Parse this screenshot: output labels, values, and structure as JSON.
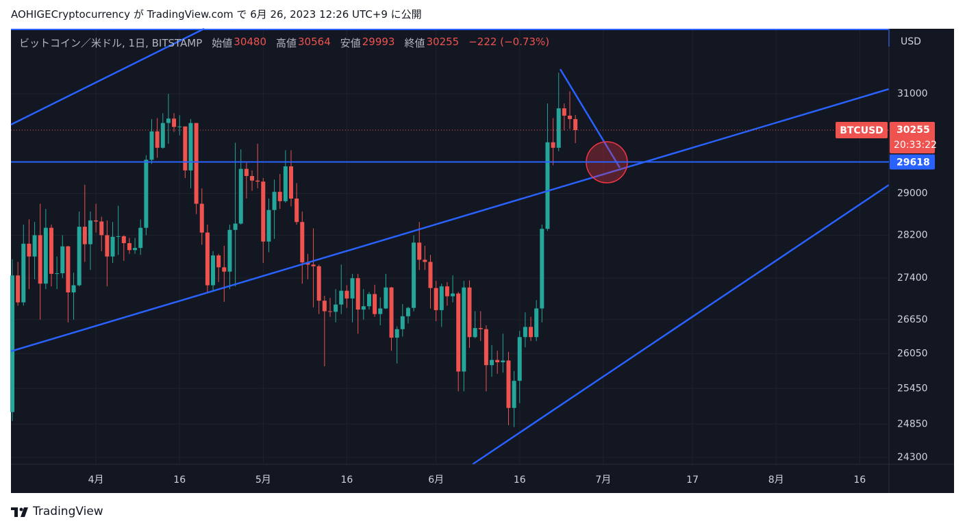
{
  "header": {
    "text": "AOHIGECryptocurrency が TradingView.com で 6月 26, 2023 12:26 UTC+9 に公開"
  },
  "footer": {
    "brand": "TradingView"
  },
  "chart_data": {
    "type": "candlestick",
    "symbol": "ビットコイン／米ドル, 1日, BITSTAMP",
    "legend_labels": {
      "open": "始値",
      "high": "高値",
      "low": "安値",
      "close": "終値"
    },
    "change": "−222 (−0.73%)",
    "currency": "USD",
    "ticker": "BTCUSD",
    "countdown": "20:33:22",
    "up_color": "#26a69a",
    "down_color": "#ef5350",
    "yscale": "log",
    "grid": true,
    "ylim": [
      24190,
      32380
    ],
    "yticks": [
      24300,
      24850,
      25450,
      26050,
      26650,
      27400,
      28200,
      29000,
      31000
    ],
    "xlim": [
      "2023-03-17",
      "2023-08-21"
    ],
    "xticks": [
      {
        "value": "2023-04-01",
        "label": "4月"
      },
      {
        "value": "2023-04-16",
        "label": "16"
      },
      {
        "value": "2023-05-01",
        "label": "5月"
      },
      {
        "value": "2023-05-16",
        "label": "16"
      },
      {
        "value": "2023-06-01",
        "label": "6月"
      },
      {
        "value": "2023-06-16",
        "label": "16"
      },
      {
        "value": "2023-07-01",
        "label": "7月"
      },
      {
        "value": "2023-07-17",
        "label": "17"
      },
      {
        "value": "2023-08-01",
        "label": "8月"
      },
      {
        "value": "2023-08-16",
        "label": "16"
      }
    ],
    "horizontal_line": {
      "value": 29618,
      "color": "#2962ff"
    },
    "x": [
      "2023-03-17",
      "2023-03-18",
      "2023-03-19",
      "2023-03-20",
      "2023-03-21",
      "2023-03-22",
      "2023-03-23",
      "2023-03-24",
      "2023-03-25",
      "2023-03-26",
      "2023-03-27",
      "2023-03-28",
      "2023-03-29",
      "2023-03-30",
      "2023-03-31",
      "2023-04-01",
      "2023-04-02",
      "2023-04-03",
      "2023-04-04",
      "2023-04-05",
      "2023-04-06",
      "2023-04-07",
      "2023-04-08",
      "2023-04-09",
      "2023-04-10",
      "2023-04-11",
      "2023-04-12",
      "2023-04-13",
      "2023-04-14",
      "2023-04-15",
      "2023-04-16",
      "2023-04-17",
      "2023-04-18",
      "2023-04-19",
      "2023-04-20",
      "2023-04-21",
      "2023-04-22",
      "2023-04-23",
      "2023-04-24",
      "2023-04-25",
      "2023-04-26",
      "2023-04-27",
      "2023-04-28",
      "2023-04-29",
      "2023-04-30",
      "2023-05-01",
      "2023-05-02",
      "2023-05-03",
      "2023-05-04",
      "2023-05-05",
      "2023-05-06",
      "2023-05-07",
      "2023-05-08",
      "2023-05-09",
      "2023-05-10",
      "2023-05-11",
      "2023-05-12",
      "2023-05-13",
      "2023-05-14",
      "2023-05-15",
      "2023-05-16",
      "2023-05-17",
      "2023-05-18",
      "2023-05-19",
      "2023-05-20",
      "2023-05-21",
      "2023-05-22",
      "2023-05-23",
      "2023-05-24",
      "2023-05-25",
      "2023-05-26",
      "2023-05-27",
      "2023-05-28",
      "2023-05-29",
      "2023-05-30",
      "2023-05-31",
      "2023-06-01",
      "2023-06-02",
      "2023-06-03",
      "2023-06-04",
      "2023-06-05",
      "2023-06-06",
      "2023-06-07",
      "2023-06-08",
      "2023-06-09",
      "2023-06-10",
      "2023-06-11",
      "2023-06-12",
      "2023-06-13",
      "2023-06-14",
      "2023-06-15",
      "2023-06-16",
      "2023-06-17",
      "2023-06-18",
      "2023-06-19",
      "2023-06-20",
      "2023-06-21",
      "2023-06-22",
      "2023-06-23",
      "2023-06-24",
      "2023-06-25",
      "2023-06-26"
    ],
    "open": [
      25050,
      27450,
      26960,
      28040,
      27800,
      28200,
      27300,
      28340,
      27480,
      27490,
      27990,
      27140,
      27270,
      28360,
      28030,
      28480,
      28460,
      28200,
      27800,
      28170,
      28180,
      28050,
      27920,
      27960,
      28340,
      29660,
      30230,
      29900,
      30400,
      30490,
      30320,
      30330,
      29450,
      30400,
      28800,
      28250,
      27270,
      27820,
      27600,
      27520,
      28300,
      28420,
      29480,
      29340,
      29250,
      29230,
      28080,
      28680,
      29030,
      28850,
      29530,
      28900,
      28450,
      27690,
      27650,
      27620,
      26990,
      26800,
      26790,
      26920,
      27170,
      27030,
      27400,
      26830,
      26890,
      27110,
      26750,
      26850,
      27230,
      26330,
      26480,
      26710,
      26860,
      28060,
      27740,
      27700,
      27220,
      26820,
      27250,
      27070,
      27120,
      25740,
      27230,
      26340,
      26500,
      26480,
      25850,
      25940,
      25900,
      25930,
      25120,
      25580,
      26340,
      26520,
      26340,
      26850,
      28320,
      30010,
      29900,
      30700,
      30550,
      30480
    ],
    "high": [
      27750,
      27700,
      28400,
      28500,
      28450,
      28800,
      28700,
      28400,
      27800,
      28200,
      28000,
      27500,
      28650,
      29170,
      28650,
      28800,
      28550,
      28480,
      28450,
      28760,
      28200,
      28150,
      28150,
      28500,
      29750,
      30480,
      30500,
      30600,
      31000,
      30600,
      30560,
      30330,
      30480,
      30400,
      29100,
      28400,
      27900,
      27850,
      28000,
      28400,
      30000,
      29870,
      29600,
      29450,
      29980,
      29300,
      28900,
      29270,
      29380,
      29850,
      29850,
      29200,
      28650,
      27850,
      28330,
      27650,
      27080,
      27040,
      27200,
      27650,
      27270,
      27480,
      27480,
      27200,
      27150,
      27280,
      27050,
      27480,
      27240,
      26530,
      26930,
      26880,
      28200,
      28450,
      28000,
      27830,
      27350,
      27300,
      27330,
      27450,
      27150,
      27350,
      27360,
      26800,
      26800,
      26550,
      26200,
      26100,
      26400,
      26080,
      25750,
      26450,
      26780,
      26700,
      27000,
      28400,
      30800,
      30500,
      31440,
      30800,
      31050,
      30564
    ],
    "low": [
      24900,
      26900,
      26900,
      27200,
      27380,
      26650,
      27200,
      27250,
      27200,
      27400,
      26600,
      26650,
      27250,
      27700,
      27550,
      28250,
      27900,
      27250,
      27680,
      27830,
      27720,
      27850,
      27850,
      27830,
      28200,
      29580,
      29700,
      29880,
      29980,
      30220,
      30150,
      29300,
      29100,
      28600,
      28020,
      27150,
      27150,
      27330,
      26970,
      27200,
      27250,
      28400,
      28900,
      29050,
      29100,
      27680,
      27880,
      28130,
      28700,
      28820,
      28750,
      28400,
      27300,
      27380,
      26870,
      26750,
      25830,
      26700,
      26600,
      26750,
      26860,
      26600,
      26400,
      26650,
      26830,
      26700,
      26550,
      26840,
      26100,
      25880,
      26350,
      26580,
      26800,
      27550,
      27550,
      26850,
      26620,
      26520,
      26900,
      26960,
      25400,
      25400,
      26150,
      26320,
      26270,
      25400,
      25650,
      25700,
      25720,
      24830,
      24800,
      25200,
      26160,
      26270,
      26270,
      26600,
      28280,
      29550,
      29830,
      30250,
      30280,
      29993
    ],
    "close": [
      27450,
      26960,
      28040,
      27800,
      28200,
      27300,
      28340,
      27480,
      27490,
      27990,
      27140,
      27270,
      28360,
      28030,
      28480,
      28460,
      28200,
      27800,
      28170,
      28180,
      28050,
      27920,
      27960,
      28340,
      29660,
      30230,
      29900,
      30400,
      30490,
      30320,
      30330,
      29450,
      30400,
      28800,
      28250,
      27270,
      27820,
      27600,
      27520,
      28300,
      28420,
      29480,
      29340,
      29250,
      29230,
      28080,
      28680,
      29030,
      28850,
      29530,
      28900,
      28450,
      27690,
      27650,
      27620,
      26990,
      26800,
      26790,
      26920,
      27170,
      27030,
      27400,
      26830,
      26890,
      27110,
      26750,
      26850,
      27230,
      26330,
      26480,
      26710,
      26860,
      28060,
      27740,
      27700,
      27220,
      26820,
      27250,
      27070,
      27120,
      25740,
      27230,
      26340,
      26500,
      26480,
      25850,
      25940,
      25900,
      25930,
      25120,
      25580,
      26340,
      26520,
      26340,
      26850,
      28320,
      30010,
      29900,
      30700,
      30550,
      30480,
      30255
    ]
  }
}
